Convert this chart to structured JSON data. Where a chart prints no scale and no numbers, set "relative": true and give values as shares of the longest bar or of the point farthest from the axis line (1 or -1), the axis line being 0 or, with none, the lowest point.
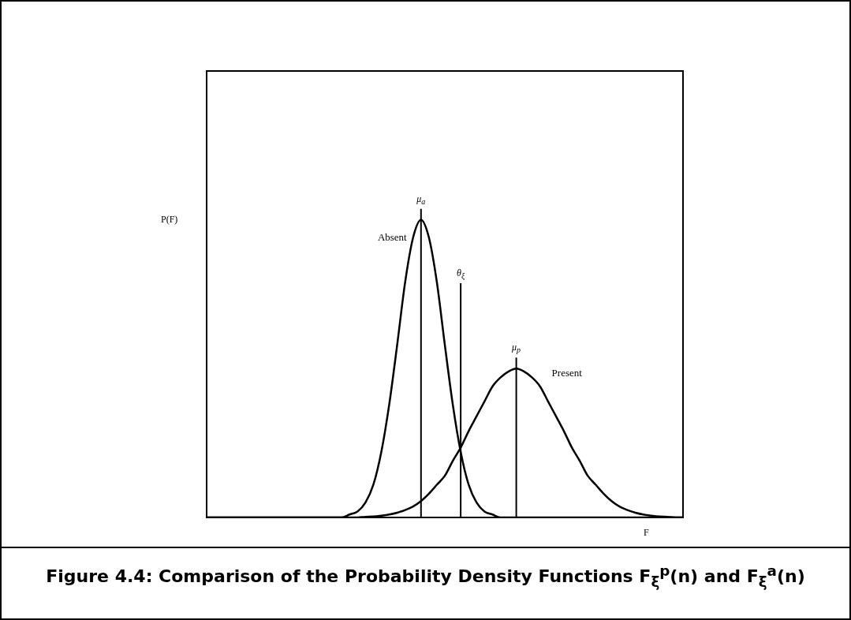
{
  "chart_data": {
    "type": "line",
    "relative": true,
    "xlabel": "F",
    "ylabel": "P(F)",
    "legend": false,
    "marker": "none",
    "categories": [
      null,
      null,
      null,
      null,
      null,
      null,
      null,
      null,
      null,
      null,
      null,
      null,
      null,
      null,
      null,
      null,
      null,
      null,
      null,
      null,
      null,
      null,
      null,
      null,
      null,
      null,
      null,
      null,
      null,
      null,
      null,
      null,
      null,
      null,
      null,
      null,
      null,
      null,
      null,
      null,
      null,
      null,
      null,
      null,
      null,
      null,
      null,
      null,
      null,
      null,
      null,
      null,
      null,
      null,
      null,
      null,
      null,
      null,
      null,
      null,
      null
    ],
    "series": [
      {
        "name": "Absent",
        "color": "#000000",
        "values": [
          0,
          0,
          0,
          0,
          0,
          0,
          0,
          0,
          0,
          0,
          0,
          0,
          0,
          0,
          0,
          0,
          0,
          0,
          0.01,
          0.02,
          0.05,
          0.11,
          0.22,
          0.38,
          0.58,
          0.79,
          0.94,
          1,
          0.94,
          0.79,
          0.58,
          0.38,
          0.22,
          0.11,
          0.05,
          0.02,
          0.01,
          0,
          0,
          0,
          0,
          0,
          0,
          0,
          0,
          0,
          0,
          0,
          0,
          0,
          0,
          0,
          0,
          0,
          0,
          0,
          0,
          0,
          0,
          0,
          0
        ]
      },
      {
        "name": "Present",
        "color": "#000000",
        "values": [
          0,
          0,
          0,
          0,
          0,
          0,
          0,
          0,
          0,
          0,
          0,
          0,
          0,
          0,
          0,
          0,
          0,
          0,
          0,
          0,
          0.002,
          0.003,
          0.006,
          0.01,
          0.016,
          0.025,
          0.037,
          0.055,
          0.08,
          0.11,
          0.14,
          0.19,
          0.235,
          0.29,
          0.34,
          0.39,
          0.44,
          0.47,
          0.49,
          0.5,
          0.49,
          0.47,
          0.44,
          0.39,
          0.34,
          0.29,
          0.235,
          0.19,
          0.14,
          0.11,
          0.08,
          0.055,
          0.037,
          0.025,
          0.016,
          0.01,
          0.006,
          0.003,
          0.002,
          0,
          0
        ]
      }
    ],
    "annotations": [
      "μ$_{a}$",
      "θ$_{ξ}$",
      "μ$_{p}$",
      "Figure 4.4: Comparison of the Probability Density Functions F$_{ξ}$$^{p}$(n) and F$_{ξ}$$^{a}$(n)"
    ]
  }
}
